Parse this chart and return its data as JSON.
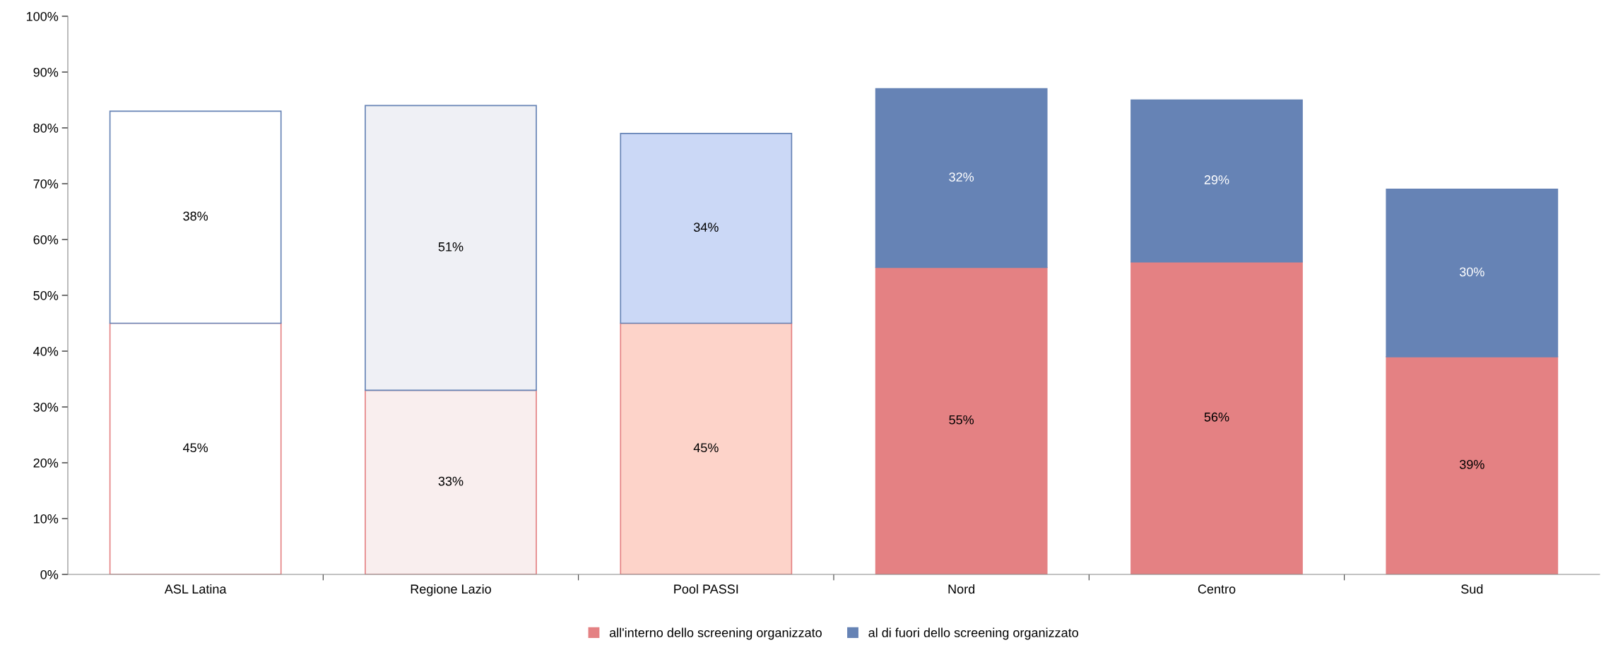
{
  "chart_data": {
    "type": "bar",
    "stacked": true,
    "categories": [
      "ASL Latina",
      "Regione Lazio",
      "Pool PASSI",
      "Nord",
      "Centro",
      "Sud"
    ],
    "series": [
      {
        "name": "all'interno dello screening organizzato",
        "color": "#e48183",
        "colors": [
          "#ffffff",
          "#f9eeee",
          "#fdd3c9",
          "#e48183",
          "#e48183",
          "#e48183"
        ],
        "values": [
          45,
          33,
          45,
          55,
          56,
          39
        ],
        "value_labels": [
          "45%",
          "33%",
          "45%",
          "55%",
          "56%",
          "39%"
        ]
      },
      {
        "name": "al di fuori dello screening organizzato",
        "color": "#6683b5",
        "colors": [
          "#ffffff",
          "#eff0f5",
          "#cbd8f6",
          "#6683b5",
          "#6683b5",
          "#6683b5"
        ],
        "values": [
          38,
          51,
          34,
          32,
          29,
          30
        ],
        "value_labels": [
          "38%",
          "51%",
          "34%",
          "32%",
          "29%",
          "30%"
        ]
      }
    ],
    "ylim": [
      0,
      100
    ],
    "yticks": [
      {
        "value": 0,
        "label": "0%"
      },
      {
        "value": 10,
        "label": "10%"
      },
      {
        "value": 20,
        "label": "20%"
      },
      {
        "value": 30,
        "label": "30%"
      },
      {
        "value": 40,
        "label": "40%"
      },
      {
        "value": 50,
        "label": "50%"
      },
      {
        "value": 60,
        "label": "60%"
      },
      {
        "value": 70,
        "label": "70%"
      },
      {
        "value": 80,
        "label": "80%"
      },
      {
        "value": 90,
        "label": "90%"
      },
      {
        "value": 100,
        "label": "100%"
      }
    ],
    "grid": false,
    "legend": "bottom"
  }
}
